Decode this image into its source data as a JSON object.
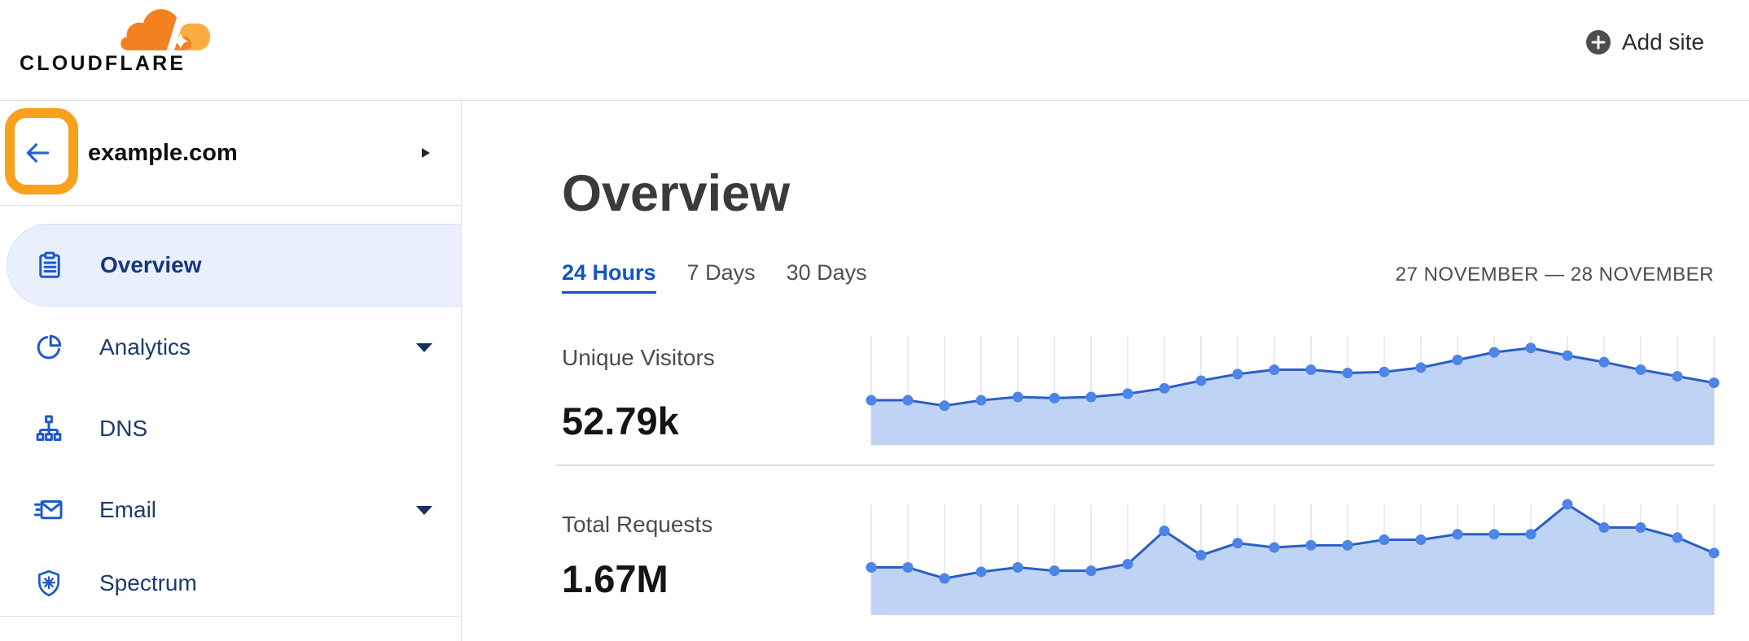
{
  "header": {
    "logo_text": "CLOUDFLARE",
    "add_site_label": "Add site",
    "brand_orange": "#F48120",
    "brand_orange_light": "#FAAD3F"
  },
  "sidebar": {
    "site_name": "example.com",
    "annotation": {
      "type": "highlight-box",
      "target": "back-button",
      "color": "#F7A11D"
    },
    "items": [
      {
        "label": "Overview",
        "icon": "clipboard-icon",
        "selected": true,
        "caret": false
      },
      {
        "label": "Analytics",
        "icon": "pie-chart-icon",
        "selected": false,
        "caret": true
      },
      {
        "label": "DNS",
        "icon": "sitemap-icon",
        "selected": false,
        "caret": false
      },
      {
        "label": "Email",
        "icon": "email-icon",
        "selected": false,
        "caret": true
      },
      {
        "label": "Spectrum",
        "icon": "shield-icon",
        "selected": false,
        "caret": false
      }
    ]
  },
  "main": {
    "title": "Overview",
    "tabs": [
      {
        "label": "24 Hours",
        "active": true
      },
      {
        "label": "7 Days",
        "active": false
      },
      {
        "label": "30 Days",
        "active": false
      }
    ],
    "date_range": "27 NOVEMBER — 28 NOVEMBER",
    "metrics": [
      {
        "label": "Unique Visitors",
        "value": "52.79k"
      },
      {
        "label": "Total Requests",
        "value": "1.67M"
      }
    ]
  },
  "chart_data": [
    {
      "type": "area",
      "title": "Unique Visitors",
      "summary_value": "52.79k",
      "x_range": "24 hours (27 Nov – 28 Nov), one point per hour, no axis labels shown",
      "n_points": 24,
      "points_norm": [
        0.41,
        0.41,
        0.36,
        0.41,
        0.44,
        0.43,
        0.44,
        0.47,
        0.52,
        0.59,
        0.65,
        0.69,
        0.69,
        0.66,
        0.67,
        0.71,
        0.78,
        0.85,
        0.89,
        0.82,
        0.76,
        0.69,
        0.63,
        0.57
      ],
      "grid": "vertical-only",
      "legend": "none",
      "colors": {
        "line": "#2B5EC6",
        "dot": "#4D84E8",
        "fill": "#BFD3F4",
        "grid": "#E9EBF1"
      }
    },
    {
      "type": "area",
      "title": "Total Requests",
      "summary_value": "1.67M",
      "x_range": "24 hours (27 Nov – 28 Nov), one point per hour, no axis labels shown",
      "n_points": 24,
      "points_norm": [
        0.43,
        0.43,
        0.33,
        0.39,
        0.43,
        0.4,
        0.4,
        0.46,
        0.76,
        0.54,
        0.65,
        0.61,
        0.63,
        0.63,
        0.68,
        0.68,
        0.73,
        0.73,
        0.73,
        1.0,
        0.79,
        0.79,
        0.7,
        0.56
      ],
      "grid": "vertical-only",
      "legend": "none",
      "colors": {
        "line": "#2B5EC6",
        "dot": "#4D84E8",
        "fill": "#BFD3F4",
        "grid": "#E9EBF1"
      }
    }
  ]
}
